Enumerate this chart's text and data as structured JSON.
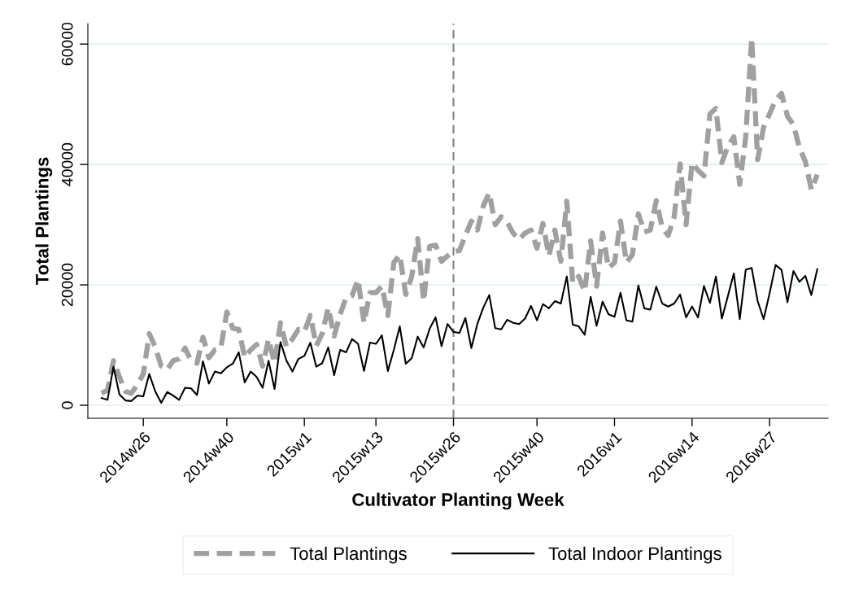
{
  "chart_data": {
    "type": "line",
    "xlabel": "Cultivator Planting Week",
    "ylabel": "Total Plantings",
    "categories": [
      null,
      null,
      null,
      null,
      null,
      null,
      null,
      "2014w26",
      null,
      null,
      null,
      null,
      null,
      null,
      null,
      null,
      null,
      null,
      null,
      null,
      null,
      "2014w40",
      null,
      null,
      null,
      null,
      null,
      null,
      null,
      null,
      null,
      null,
      null,
      null,
      "2015w1",
      null,
      null,
      null,
      null,
      null,
      null,
      null,
      null,
      null,
      null,
      null,
      "2015w13",
      null,
      null,
      null,
      null,
      null,
      null,
      null,
      null,
      null,
      null,
      null,
      null,
      "2015w26",
      null,
      null,
      null,
      null,
      null,
      null,
      null,
      null,
      null,
      null,
      null,
      null,
      null,
      "2015w40",
      null,
      null,
      null,
      null,
      null,
      null,
      null,
      null,
      null,
      null,
      null,
      null,
      "2016w1",
      null,
      null,
      null,
      null,
      null,
      null,
      null,
      null,
      null,
      null,
      null,
      null,
      "2016w14",
      null,
      null,
      null,
      null,
      null,
      null,
      null,
      null,
      null,
      null,
      null,
      null,
      "2016w27",
      null,
      null,
      null,
      null,
      null,
      null,
      null,
      null
    ],
    "series": [
      {
        "name": "Total Plantings",
        "color": "#a0a0a0",
        "line_style": "dashed",
        "values": [
          2000,
          2500,
          7400,
          4700,
          2300,
          2000,
          3400,
          5200,
          11900,
          9700,
          6500,
          5900,
          7400,
          7700,
          9500,
          7400,
          7000,
          11300,
          7900,
          9200,
          9500,
          15500,
          12800,
          12600,
          7900,
          9200,
          10100,
          6500,
          11000,
          7000,
          13700,
          9700,
          11000,
          12600,
          12200,
          14900,
          9900,
          11900,
          16200,
          11500,
          15100,
          17900,
          18200,
          20900,
          13700,
          18700,
          18700,
          19800,
          14900,
          23700,
          25000,
          18400,
          21400,
          27700,
          17300,
          26400,
          26600,
          23900,
          24800,
          25500,
          25700,
          28200,
          30600,
          29100,
          33100,
          35300,
          30000,
          31300,
          30400,
          28600,
          27500,
          28600,
          29100,
          26100,
          30200,
          24800,
          29100,
          23900,
          33900,
          20300,
          21400,
          18900,
          27300,
          19800,
          28600,
          22800,
          23700,
          30600,
          23700,
          25000,
          31800,
          28800,
          29100,
          34000,
          29500,
          28200,
          31300,
          40100,
          30000,
          40300,
          39000,
          38100,
          48400,
          49300,
          40300,
          43000,
          44600,
          36700,
          44600,
          61000,
          40800,
          46200,
          48400,
          50700,
          51800,
          48000,
          46600,
          42800,
          40500,
          35800,
          38300
        ]
      },
      {
        "name": "Total Indoor Plantings",
        "color": "#000000",
        "line_style": "solid",
        "values": [
          1200,
          900,
          6400,
          1800,
          800,
          700,
          1600,
          1500,
          5200,
          2300,
          400,
          2200,
          1600,
          900,
          2900,
          2800,
          1700,
          7300,
          3600,
          5600,
          5300,
          6300,
          6900,
          8800,
          3800,
          5600,
          4700,
          2900,
          7400,
          2700,
          10500,
          7400,
          5600,
          7700,
          8200,
          10400,
          6400,
          7000,
          9600,
          5000,
          9200,
          8800,
          11000,
          10200,
          5700,
          10400,
          10200,
          11600,
          5700,
          9200,
          13100,
          6900,
          7800,
          11400,
          9600,
          12700,
          14600,
          9800,
          13500,
          12200,
          12000,
          14500,
          9500,
          13500,
          16200,
          18300,
          12800,
          12600,
          14200,
          13700,
          13500,
          14400,
          16500,
          14100,
          16800,
          16100,
          17300,
          16900,
          21400,
          13400,
          13100,
          11700,
          18000,
          13200,
          17200,
          15100,
          14700,
          18700,
          14100,
          13900,
          19900,
          16100,
          15900,
          19700,
          16900,
          16400,
          16900,
          18400,
          14600,
          16400,
          14600,
          19800,
          17000,
          21400,
          14400,
          18100,
          21900,
          14300,
          22500,
          22800,
          17300,
          14300,
          18600,
          23300,
          22500,
          17100,
          22300,
          20500,
          21500,
          18300,
          22600
        ]
      }
    ],
    "ylim": [
      -2160,
      63400
    ],
    "yticks": [
      0,
      20000,
      40000,
      60000
    ],
    "ref_lines": [
      {
        "axis": "x",
        "value": "2015w26",
        "color": "#808080",
        "line_style": "dashed"
      }
    ],
    "grid": "y",
    "legend": "bottom",
    "marker": "none"
  }
}
